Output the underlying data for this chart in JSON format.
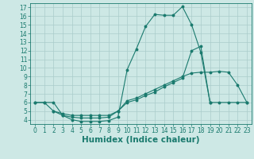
{
  "title": "",
  "xlabel": "Humidex (Indice chaleur)",
  "background_color": "#cde8e5",
  "grid_color": "#aaccca",
  "line_color": "#1a7a6e",
  "xlim": [
    -0.5,
    23.5
  ],
  "ylim": [
    3.5,
    17.5
  ],
  "xticks": [
    0,
    1,
    2,
    3,
    4,
    5,
    6,
    7,
    8,
    9,
    10,
    11,
    12,
    13,
    14,
    15,
    16,
    17,
    18,
    19,
    20,
    21,
    22,
    23
  ],
  "yticks": [
    4,
    5,
    6,
    7,
    8,
    9,
    10,
    11,
    12,
    13,
    14,
    15,
    16,
    17
  ],
  "xlabel_fontsize": 7.5,
  "tick_fontsize": 5.5,
  "line1_x": [
    0,
    1,
    2,
    3,
    4,
    5,
    6,
    7,
    8,
    9,
    10,
    11,
    12,
    13,
    14,
    15,
    16,
    17,
    18,
    19
  ],
  "line1_y": [
    6.0,
    6.0,
    6.0,
    4.5,
    4.0,
    3.8,
    3.8,
    3.8,
    3.9,
    4.3,
    9.8,
    12.2,
    14.8,
    16.2,
    16.1,
    16.1,
    17.1,
    15.0,
    11.8,
    6.0
  ],
  "line2_x": [
    0,
    1,
    2,
    3,
    4,
    5,
    6,
    7,
    8,
    9,
    10,
    11,
    12,
    13,
    14,
    15,
    16,
    17,
    18,
    19,
    20,
    21,
    22,
    23
  ],
  "line2_y": [
    6.0,
    6.0,
    5.0,
    4.5,
    4.3,
    4.2,
    4.2,
    4.2,
    4.3,
    5.0,
    6.2,
    6.5,
    7.0,
    7.5,
    8.0,
    8.5,
    9.0,
    9.4,
    9.5,
    9.5,
    9.6,
    9.5,
    8.0,
    6.0
  ],
  "line3_x": [
    2,
    3,
    4,
    5,
    6,
    7,
    8,
    9,
    10,
    11,
    12,
    13,
    14,
    15,
    16,
    17,
    18,
    19,
    20,
    21,
    22,
    23
  ],
  "line3_y": [
    5.0,
    4.7,
    4.5,
    4.5,
    4.5,
    4.5,
    4.5,
    5.0,
    6.0,
    6.3,
    6.8,
    7.2,
    7.8,
    8.3,
    8.8,
    12.0,
    12.5,
    6.0,
    6.0,
    6.0,
    6.0,
    6.0
  ]
}
